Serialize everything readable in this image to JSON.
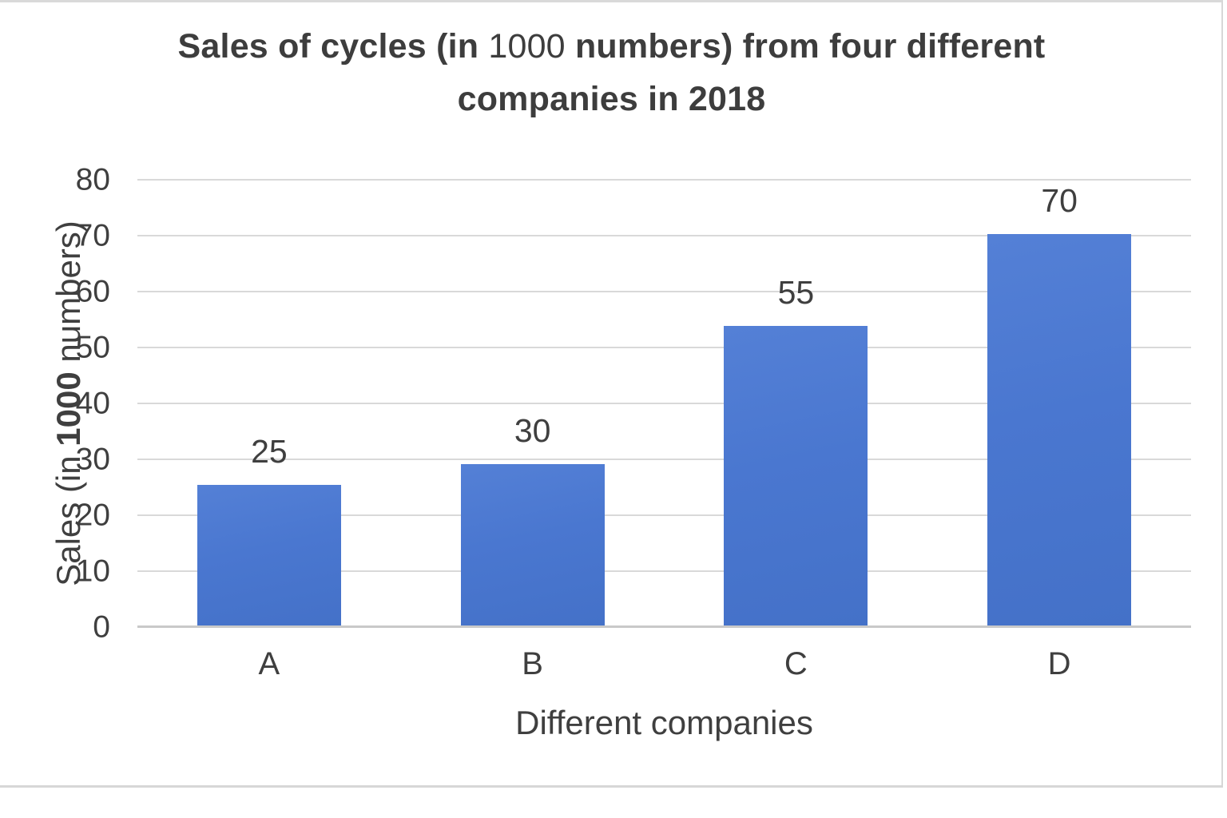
{
  "chart_data": {
    "type": "bar",
    "title": "Sales of cycles (in 1000 numbers) from four different companies in 2018",
    "title_lines": [
      [
        {
          "text": "Sales of cycles (in ",
          "bold": true
        },
        {
          "text": "1000",
          "bold": false
        },
        {
          "text": " numbers) from four different",
          "bold": true
        }
      ],
      [
        {
          "text": "companies in 2018",
          "bold": true
        }
      ]
    ],
    "xlabel": "Different companies",
    "ylabel": "Sales (in 1000 numbers)",
    "ylabel_parts": [
      {
        "text": "Sales (in ",
        "bold": false
      },
      {
        "text": "1000",
        "bold": true
      },
      {
        "text": " numbers)",
        "bold": false
      }
    ],
    "categories": [
      "A",
      "B",
      "C",
      "D"
    ],
    "values": [
      25,
      30,
      55,
      70
    ],
    "bar_tops_as_rendered": [
      25.4,
      29.1,
      53.9,
      70.3
    ],
    "ylim": [
      0,
      80
    ],
    "yticks": [
      0,
      10,
      20,
      30,
      40,
      50,
      60,
      70,
      80
    ],
    "grid": "horizontal",
    "legend": "none",
    "colors": {
      "bar_fill": "#4a77d0",
      "text": "#3f3f3f",
      "gridline": "#d9d9d9",
      "axis_line": "#c9c9c9",
      "frame_border": "#d9d9d9",
      "background": "#ffffff"
    }
  }
}
